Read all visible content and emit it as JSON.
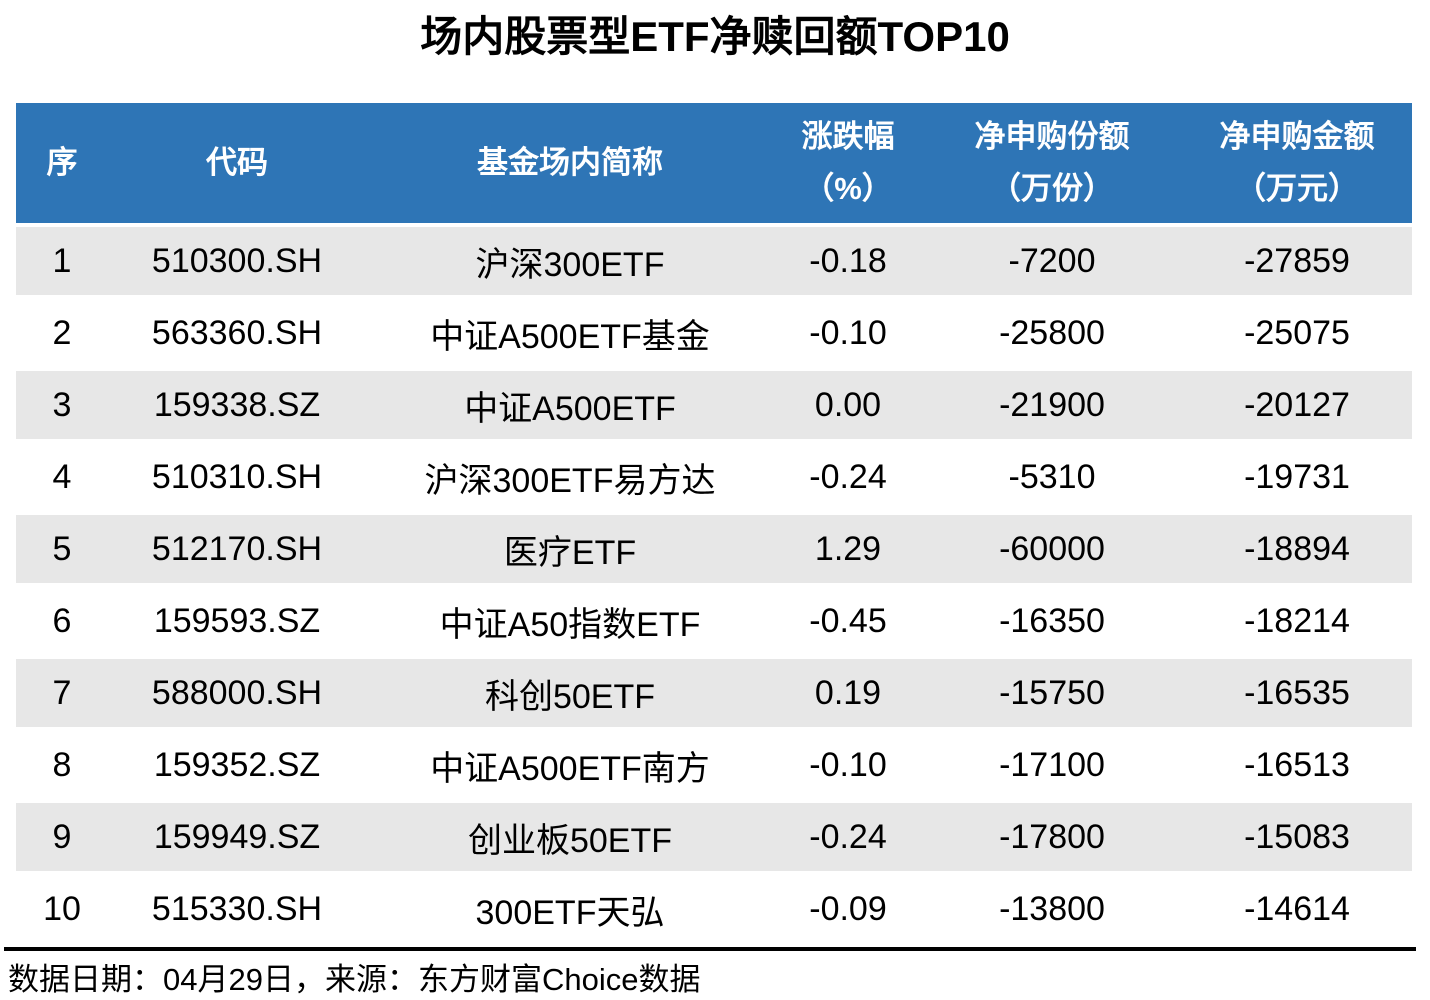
{
  "chart_data": {
    "type": "table",
    "title": "场内股票型ETF净赎回额TOP10",
    "column_labels": [
      "序",
      "代码",
      "基金场内简称",
      "涨跌幅（%）",
      "净申购份额（万份）",
      "净申购金额（万元）"
    ],
    "columns": [
      {
        "line1": "序",
        "line2": ""
      },
      {
        "line1": "代码",
        "line2": ""
      },
      {
        "line1": "基金场内简称",
        "line2": ""
      },
      {
        "line1": "涨跌幅",
        "line2": "（%）"
      },
      {
        "line1": "净申购份额",
        "line2": "（万份）"
      },
      {
        "line1": "净申购金额",
        "line2": "（万元）"
      }
    ],
    "column_keys": [
      "seq",
      "code",
      "name",
      "change-pct",
      "net-shares",
      "net-amount"
    ],
    "rows": [
      [
        "1",
        "510300.SH",
        "沪深300ETF",
        "-0.18",
        "-7200",
        "-27859"
      ],
      [
        "2",
        "563360.SH",
        "中证A500ETF基金",
        "-0.10",
        "-25800",
        "-25075"
      ],
      [
        "3",
        "159338.SZ",
        "中证A500ETF",
        "0.00",
        "-21900",
        "-20127"
      ],
      [
        "4",
        "510310.SH",
        "沪深300ETF易方达",
        "-0.24",
        "-5310",
        "-19731"
      ],
      [
        "5",
        "512170.SH",
        "医疗ETF",
        "1.29",
        "-60000",
        "-18894"
      ],
      [
        "6",
        "159593.SZ",
        "中证A50指数ETF",
        "-0.45",
        "-16350",
        "-18214"
      ],
      [
        "7",
        "588000.SH",
        "科创50ETF",
        "0.19",
        "-15750",
        "-16535"
      ],
      [
        "8",
        "159352.SZ",
        "中证A500ETF南方",
        "-0.10",
        "-17100",
        "-16513"
      ],
      [
        "9",
        "159949.SZ",
        "创业板50ETF",
        "-0.24",
        "-17800",
        "-15083"
      ],
      [
        "10",
        "515330.SH",
        "300ETF天弘",
        "-0.09",
        "-13800",
        "-14614"
      ]
    ],
    "source_note": "数据日期：04月29日，来源：东方财富Choice数据",
    "colors": {
      "header_bg": "#2E75B6",
      "header_text": "#FFFFFF",
      "row_stripe": "#E7E7E7",
      "row_plain": "#FFFFFF",
      "divider": "#000000",
      "text": "#000000"
    },
    "layout": {
      "striped": true,
      "header_two_line": true
    }
  }
}
